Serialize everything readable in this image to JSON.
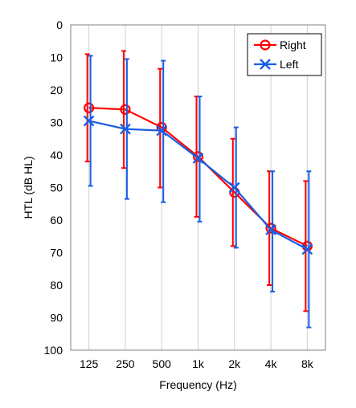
{
  "chart_data": {
    "type": "line",
    "categories": [
      "125",
      "250",
      "500",
      "1k",
      "2k",
      "4k",
      "8k"
    ],
    "xlabel": "Frequency (Hz)",
    "ylabel": "HTL (dB HL)",
    "ylim": [
      0,
      100
    ],
    "y_inverted": true,
    "y_ticks": [
      0,
      10,
      20,
      30,
      40,
      50,
      60,
      70,
      80,
      90,
      100
    ],
    "grid": "vertical",
    "legend": "top-right",
    "series": [
      {
        "name": "Right",
        "color": "#ff0000",
        "marker": "circle",
        "values": [
          25.5,
          26,
          31.5,
          40.5,
          51.5,
          62.5,
          68
        ],
        "err_low": [
          9,
          8,
          13.5,
          22,
          35,
          45,
          48
        ],
        "err_high": [
          42,
          44,
          50,
          59,
          68,
          80,
          88
        ]
      },
      {
        "name": "Left",
        "color": "#1a5ee6",
        "marker": "x",
        "values": [
          29.5,
          32,
          32.5,
          41,
          50,
          63,
          69
        ],
        "err_low": [
          9.5,
          10.5,
          11,
          22,
          31.5,
          45,
          45
        ],
        "err_high": [
          49.5,
          53.5,
          54.5,
          60.5,
          68.5,
          82,
          93
        ]
      }
    ]
  }
}
